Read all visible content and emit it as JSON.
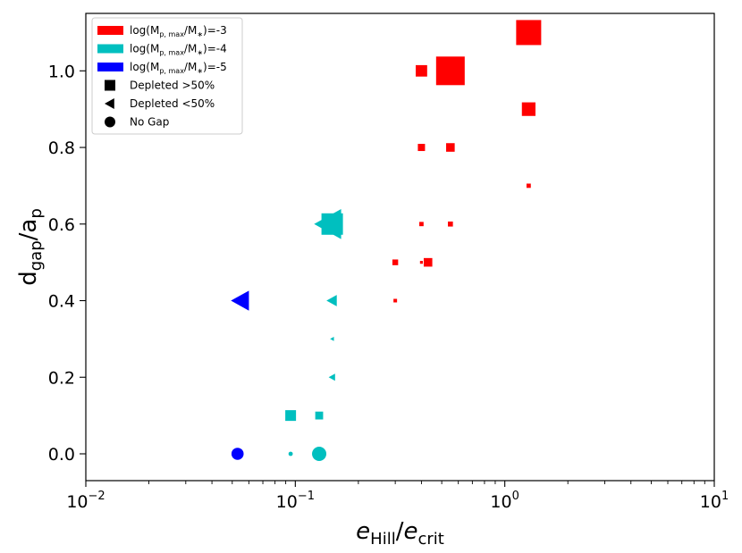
{
  "chart_data": {
    "type": "scatter",
    "xscale": "log",
    "xlim_log10": [
      -2,
      1
    ],
    "ylim": [
      -0.07,
      1.15
    ],
    "xlabel": {
      "main": "e",
      "main_sub": "Hill",
      "sep": "/",
      "den": "e",
      "den_sub": "crit"
    },
    "ylabel": {
      "main": "d",
      "main_sub": "gap",
      "sep": "/",
      "den": "a",
      "den_sub": "p"
    },
    "xticks": [
      {
        "exp": -2,
        "base": "10",
        "sup": "−2"
      },
      {
        "exp": -1,
        "base": "10",
        "sup": "−1"
      },
      {
        "exp": 0,
        "base": "10",
        "sup": "0"
      },
      {
        "exp": 1,
        "base": "10",
        "sup": "1"
      }
    ],
    "yticks": [
      {
        "value": 0.0,
        "label": "0.0"
      },
      {
        "value": 0.2,
        "label": "0.2"
      },
      {
        "value": 0.4,
        "label": "0.4"
      },
      {
        "value": 0.6,
        "label": "0.6"
      },
      {
        "value": 0.8,
        "label": "0.8"
      },
      {
        "value": 1.0,
        "label": "1.0"
      }
    ],
    "legend": {
      "placement": "top-left",
      "entries": [
        {
          "kind": "patch",
          "color": "#ff0000",
          "pre": "log(M",
          "sub": "p, max",
          "mid": "/M",
          "sub2": "∗",
          "post": ")=-3"
        },
        {
          "kind": "patch",
          "color": "#00bfbf",
          "pre": "log(M",
          "sub": "p, max",
          "mid": "/M",
          "sub2": "∗",
          "post": ")=-4"
        },
        {
          "kind": "patch",
          "color": "#0000ff",
          "pre": "log(M",
          "sub": "p, max",
          "mid": "/M",
          "sub2": "∗",
          "post": ")=-5"
        },
        {
          "kind": "marker",
          "marker": "square",
          "text": "Depleted >50%"
        },
        {
          "kind": "marker",
          "marker": "triangle",
          "text": "Depleted <50%"
        },
        {
          "kind": "marker",
          "marker": "circle",
          "text": "No Gap"
        }
      ]
    },
    "colors": {
      "-3": "#ff0000",
      "-4": "#00bfbf",
      "-5": "#0000ff"
    },
    "series": [
      {
        "name": "log(Mp,max/M*)=-3",
        "color_key": "-3",
        "points": [
          {
            "x": 1.3,
            "y": 1.1,
            "marker": "square",
            "size": 3.5
          },
          {
            "x": 0.4,
            "y": 1.0,
            "marker": "square",
            "size": 1.6
          },
          {
            "x": 0.55,
            "y": 1.0,
            "marker": "square",
            "size": 4.0
          },
          {
            "x": 1.3,
            "y": 0.9,
            "marker": "square",
            "size": 1.9
          },
          {
            "x": 0.4,
            "y": 0.8,
            "marker": "square",
            "size": 1.0
          },
          {
            "x": 0.55,
            "y": 0.8,
            "marker": "square",
            "size": 1.2
          },
          {
            "x": 1.3,
            "y": 0.7,
            "marker": "square",
            "size": 0.6
          },
          {
            "x": 0.4,
            "y": 0.6,
            "marker": "square",
            "size": 0.6
          },
          {
            "x": 0.55,
            "y": 0.6,
            "marker": "square",
            "size": 0.7
          },
          {
            "x": 0.3,
            "y": 0.5,
            "marker": "square",
            "size": 0.8
          },
          {
            "x": 0.4,
            "y": 0.5,
            "marker": "square",
            "size": 0.4
          },
          {
            "x": 0.43,
            "y": 0.5,
            "marker": "square",
            "size": 1.2
          },
          {
            "x": 0.3,
            "y": 0.4,
            "marker": "square",
            "size": 0.5
          }
        ]
      },
      {
        "name": "log(Mp,max/M*)=-4",
        "color_key": "-4",
        "points": [
          {
            "x": 0.145,
            "y": 0.6,
            "marker": "triangle",
            "size": 4.2
          },
          {
            "x": 0.15,
            "y": 0.6,
            "marker": "square",
            "size": 3.0
          },
          {
            "x": 0.15,
            "y": 0.4,
            "marker": "triangle",
            "size": 1.6
          },
          {
            "x": 0.15,
            "y": 0.3,
            "marker": "triangle",
            "size": 0.6
          },
          {
            "x": 0.15,
            "y": 0.2,
            "marker": "triangle",
            "size": 1.0
          },
          {
            "x": 0.095,
            "y": 0.1,
            "marker": "square",
            "size": 1.5
          },
          {
            "x": 0.13,
            "y": 0.1,
            "marker": "square",
            "size": 1.1
          },
          {
            "x": 0.095,
            "y": 0.0,
            "marker": "circle",
            "size": 0.6
          },
          {
            "x": 0.13,
            "y": 0.0,
            "marker": "circle",
            "size": 2.0
          }
        ]
      },
      {
        "name": "log(Mp,max/M*)=-5",
        "color_key": "-5",
        "points": [
          {
            "x": 0.055,
            "y": 0.4,
            "marker": "triangle",
            "size": 2.8
          },
          {
            "x": 0.053,
            "y": 0.0,
            "marker": "circle",
            "size": 1.7
          }
        ]
      }
    ]
  }
}
